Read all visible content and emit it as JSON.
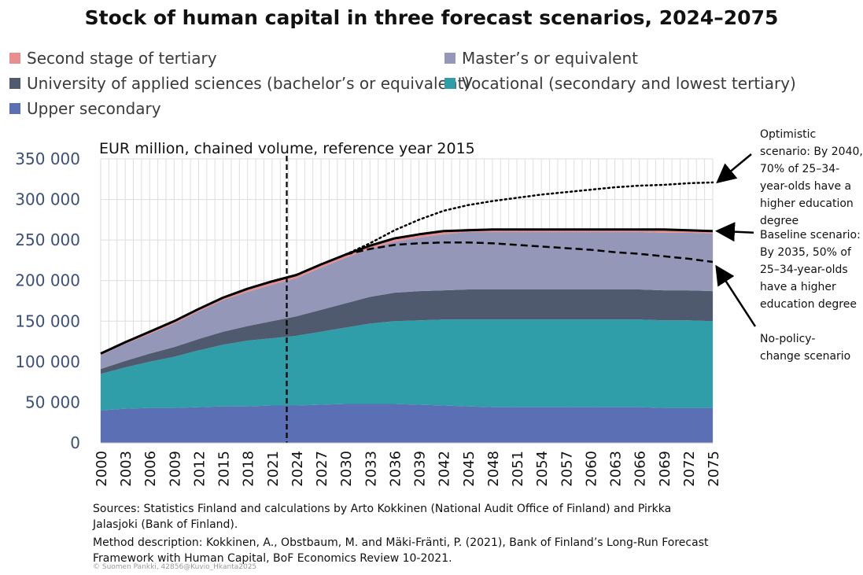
{
  "chart_data": {
    "type": "area",
    "title": "Stock of human capital in three forecast scenarios, 2024–2075",
    "unit_label": "EUR million, chained volume, reference year 2015",
    "x": [
      2000,
      2003,
      2006,
      2009,
      2012,
      2015,
      2018,
      2021,
      2024,
      2027,
      2030,
      2033,
      2036,
      2039,
      2042,
      2045,
      2048,
      2051,
      2054,
      2057,
      2060,
      2063,
      2066,
      2069,
      2072,
      2075
    ],
    "x_tick_labels": [
      "2000",
      "2003",
      "2006",
      "2009",
      "2012",
      "2015",
      "2018",
      "2021",
      "2024",
      "2027",
      "2030",
      "2033",
      "2036",
      "2039",
      "2042",
      "2045",
      "2048",
      "2051",
      "2054",
      "2057",
      "2060",
      "2063",
      "2066",
      "2069",
      "2072",
      "2075"
    ],
    "ylim": [
      0,
      350000
    ],
    "y_ticks": [
      0,
      50000,
      100000,
      150000,
      200000,
      250000,
      300000,
      350000
    ],
    "y_tick_labels": [
      "0",
      "50 000",
      "100 000",
      "150 000",
      "200 000",
      "250 000",
      "300 000",
      "350 000"
    ],
    "grid": true,
    "forecast_start_x": 2022.8,
    "series": [
      {
        "name": "Upper secondary",
        "color": "#5b6fb5",
        "values": [
          40000,
          42000,
          43000,
          43000,
          44000,
          45000,
          45000,
          46000,
          46000,
          47000,
          48000,
          48000,
          48000,
          47000,
          46000,
          45000,
          44000,
          44000,
          44000,
          44000,
          44000,
          44000,
          44000,
          43000,
          43000,
          43000
        ]
      },
      {
        "name": "Vocational (secondary and lowest tertiary)",
        "color": "#2f9ea8",
        "values": [
          45000,
          51000,
          57000,
          63000,
          70000,
          76000,
          81000,
          83000,
          86000,
          90000,
          94000,
          99000,
          102000,
          104000,
          106000,
          107000,
          108000,
          108000,
          108000,
          108000,
          108000,
          108000,
          108000,
          108000,
          108000,
          107000
        ]
      },
      {
        "name": "University of applied sciences (bachelor’s or equivalent)",
        "color": "#4f5a6e",
        "values": [
          6000,
          8000,
          10000,
          12000,
          14000,
          16000,
          18000,
          21000,
          24000,
          27000,
          30000,
          33000,
          35000,
          36000,
          36000,
          37000,
          37000,
          37000,
          37000,
          37000,
          37000,
          37000,
          37000,
          37000,
          37000,
          37000
        ]
      },
      {
        "name": "Master’s or equivalent",
        "color": "#9597b8",
        "values": [
          17000,
          21000,
          24000,
          29000,
          34000,
          39000,
          42000,
          45000,
          47000,
          52000,
          56000,
          59000,
          63000,
          66000,
          69000,
          71000,
          71000,
          71000,
          71000,
          71000,
          71000,
          71000,
          71000,
          71000,
          71000,
          71000
        ]
      },
      {
        "name": "Second stage of tertiary",
        "color": "#e88e8e",
        "values": [
          2000,
          2000,
          3000,
          3000,
          3000,
          3000,
          4000,
          4000,
          4000,
          4000,
          4000,
          4000,
          4000,
          4000,
          4000,
          4000,
          4000,
          4000,
          4000,
          4000,
          4000,
          4000,
          4000,
          4000,
          4000,
          4000
        ]
      }
    ],
    "scenario_lines": [
      {
        "name": "Baseline scenario",
        "style": "solid",
        "x": [
          2000,
          2003,
          2006,
          2009,
          2012,
          2015,
          2018,
          2021,
          2024,
          2027,
          2030,
          2033,
          2036,
          2039,
          2042,
          2045,
          2048,
          2051,
          2054,
          2057,
          2060,
          2063,
          2066,
          2069,
          2072,
          2075
        ],
        "values": [
          110000,
          124000,
          137000,
          150000,
          165000,
          179000,
          190000,
          199000,
          207000,
          220000,
          232000,
          243000,
          252000,
          257000,
          261000,
          262000,
          263000,
          263000,
          263000,
          263000,
          263000,
          263000,
          263000,
          263000,
          262000,
          261000
        ]
      },
      {
        "name": "Optimistic scenario",
        "style": "dotted",
        "x": [
          2030,
          2033,
          2036,
          2039,
          2042,
          2045,
          2048,
          2051,
          2054,
          2057,
          2060,
          2063,
          2066,
          2069,
          2072,
          2075
        ],
        "values": [
          232000,
          246000,
          262000,
          275000,
          286000,
          293000,
          298000,
          302000,
          306000,
          309000,
          312000,
          315000,
          317000,
          318000,
          320000,
          321000
        ]
      },
      {
        "name": "No-policy-change scenario",
        "style": "dashed",
        "x": [
          2030,
          2033,
          2036,
          2039,
          2042,
          2045,
          2048,
          2051,
          2054,
          2057,
          2060,
          2063,
          2066,
          2069,
          2072,
          2075
        ],
        "values": [
          232000,
          239000,
          244000,
          246000,
          247000,
          247000,
          246000,
          244000,
          242000,
          240000,
          238000,
          235000,
          233000,
          230000,
          227000,
          223000
        ]
      }
    ],
    "annotations": {
      "optimistic": [
        "Optimistic",
        "scenario: By 2040,",
        "70% of 25–34-",
        "year-olds have a",
        "higher education",
        "degree"
      ],
      "baseline": [
        "Baseline scenario:",
        "By 2035, 50% of",
        "25–34-year-olds",
        "have a higher",
        "education degree"
      ],
      "nopolicy": [
        "No-policy-",
        "change scenario"
      ]
    },
    "legend_placement": "top",
    "legend": [
      {
        "label": "Second stage of tertiary",
        "color": "#e88e8e"
      },
      {
        "label": "Master’s or equivalent",
        "color": "#9597b8"
      },
      {
        "label": "University of applied sciences (bachelor’s or equivalent)",
        "color": "#4f5a6e"
      },
      {
        "label": "Vocational (secondary and lowest tertiary)",
        "color": "#2f9ea8"
      },
      {
        "label": "Upper secondary",
        "color": "#5b6fb5"
      }
    ]
  },
  "sources": {
    "line1": "Sources: Statistics Finland and calculations by Arto Kokkinen (National Audit Office of Finland) and Pirkka",
    "line2": "Jalasjoki (Bank of Finland).",
    "line3": "Method description: Kokkinen, A., Obstbaum, M. and Mäki-Fränti, P. (2021), Bank of Finland’s Long-Run Forecast",
    "line4": "Framework with Human Capital, BoF Economics Review 10-2021."
  },
  "watermark": "© Suomen Pankki, 42856@Kuvio_Hkanta2025"
}
